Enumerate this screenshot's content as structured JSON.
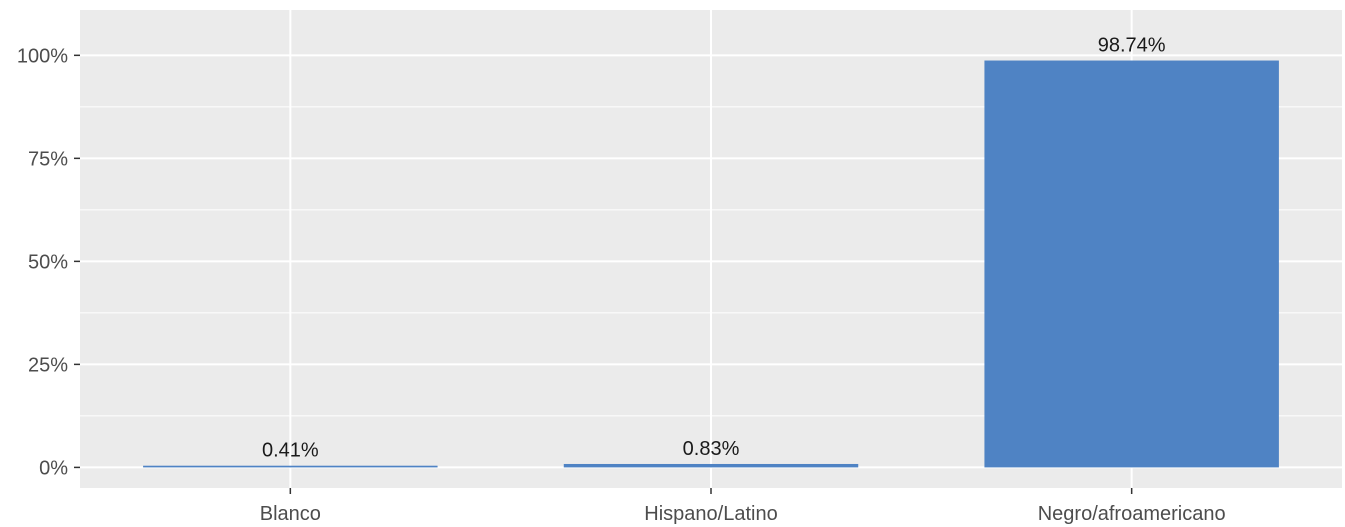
{
  "chart_data": {
    "type": "bar",
    "title": "",
    "xlabel": "",
    "ylabel": "",
    "categories": [
      "Blanco",
      "Hispano/Latino",
      "Negro/afroamericano"
    ],
    "values": [
      0.41,
      0.83,
      98.74
    ],
    "data_labels": [
      "0.41%",
      "0.83%",
      "98.74%"
    ],
    "ylim": [
      -5,
      111
    ],
    "y_ticks": [
      0,
      25,
      50,
      75,
      100
    ],
    "y_tick_labels": [
      "0%",
      "25%",
      "50%",
      "75%",
      "100%"
    ],
    "grid": true,
    "legend": "none",
    "colors": {
      "bar": "#4f83c4",
      "panel_background": "#ebebeb",
      "gridline": "#ffffff",
      "tick_text": "#4d4d4d",
      "label_text": "#1a1a1a"
    }
  }
}
